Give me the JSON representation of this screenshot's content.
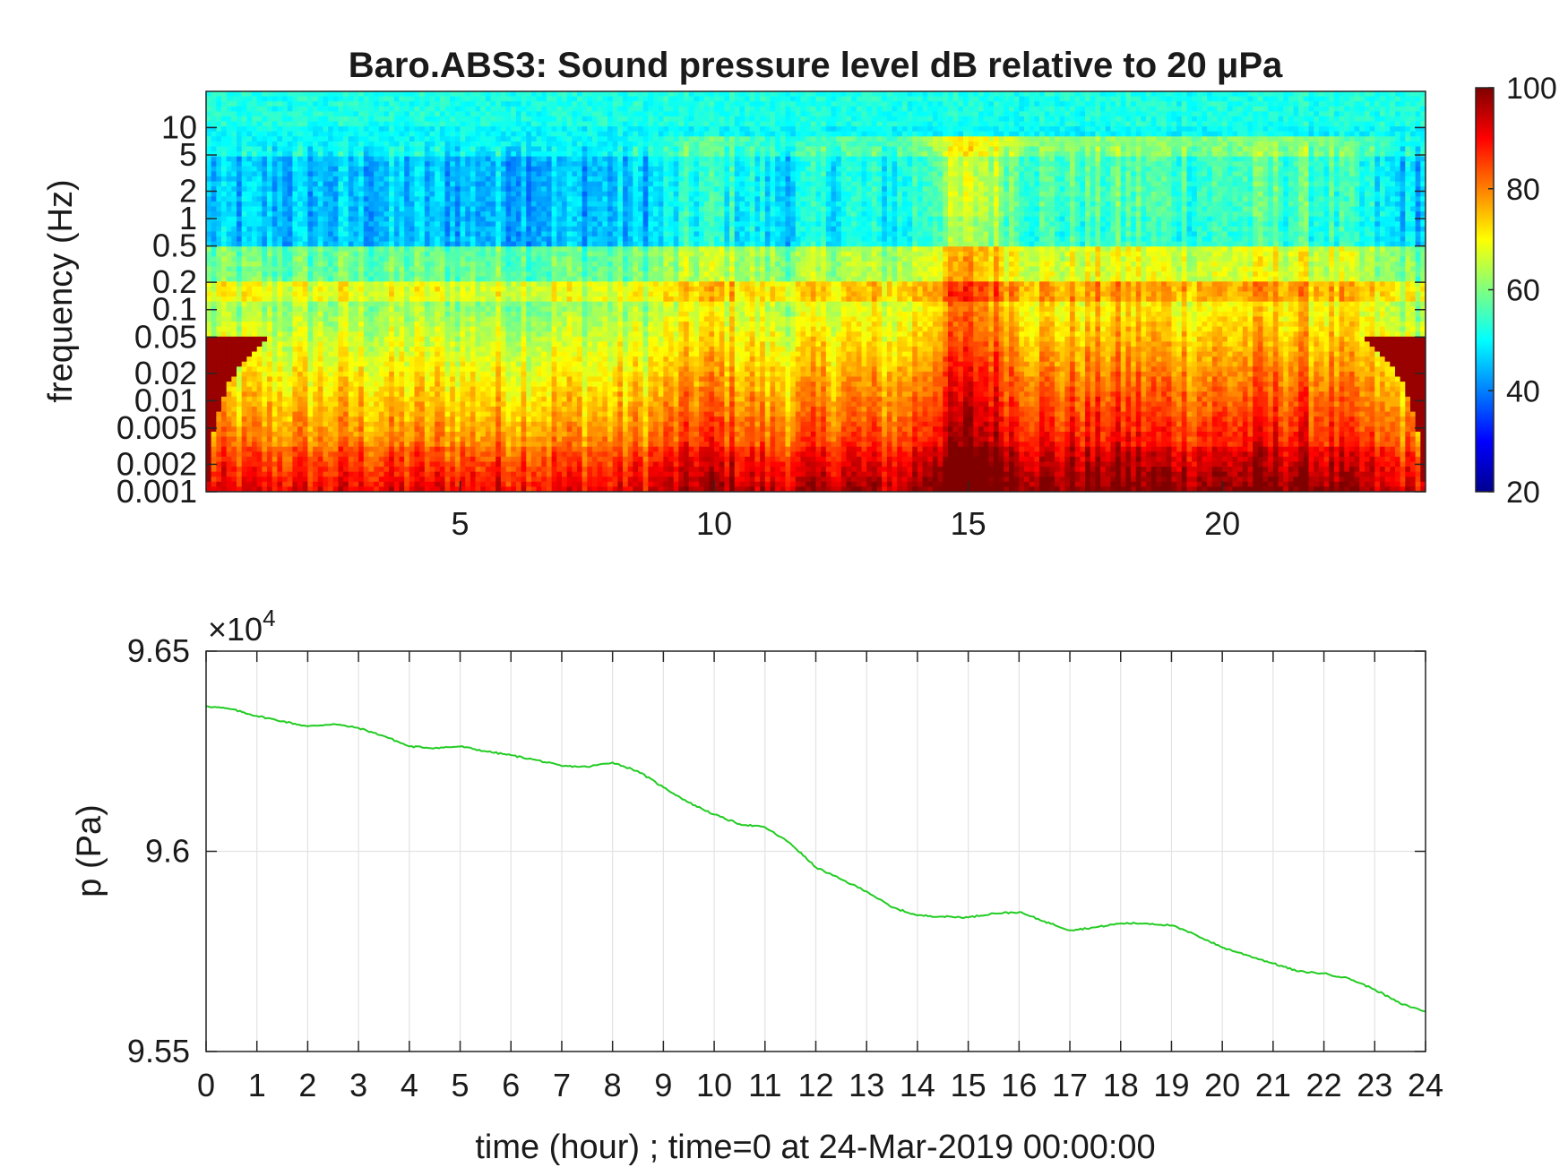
{
  "chart_data": [
    {
      "type": "heatmap",
      "title": "Baro.ABS3: Sound pressure level dB relative to 20 μPa",
      "ylabel": "frequency (Hz)",
      "xlabel": "",
      "xlim": [
        0,
        24
      ],
      "x_ticks": [
        5,
        10,
        15,
        20
      ],
      "x_tick_labels": [
        "5",
        "10",
        "15",
        "20"
      ],
      "y_scale": "log",
      "ylim": [
        0.001,
        25
      ],
      "y_ticks": [
        0.001,
        0.002,
        0.005,
        0.01,
        0.02,
        0.05,
        0.1,
        0.2,
        0.5,
        1,
        2,
        5,
        10
      ],
      "y_tick_labels": [
        "0.001",
        "0.002",
        "0.005",
        "0.01",
        "0.02",
        "0.05",
        "0.1",
        "0.2",
        "0.5",
        "1",
        "2",
        "5",
        "10"
      ],
      "colorbar": {
        "range": [
          20,
          100
        ],
        "ticks": [
          20,
          40,
          60,
          80,
          100
        ],
        "tick_labels": [
          "20",
          "40",
          "60",
          "80",
          "100"
        ],
        "colormap": "jet"
      },
      "grid": false
    },
    {
      "type": "line",
      "title": "",
      "xlabel": "time (hour) ; time=0 at 24-Mar-2019 00:00:00",
      "ylabel": "p (Pa)",
      "xlim": [
        0,
        24
      ],
      "ylim": [
        95500,
        96500
      ],
      "x_ticks": [
        0,
        1,
        2,
        3,
        4,
        5,
        6,
        7,
        8,
        9,
        10,
        11,
        12,
        13,
        14,
        15,
        16,
        17,
        18,
        19,
        20,
        21,
        22,
        23,
        24
      ],
      "x_tick_labels": [
        "0",
        "1",
        "2",
        "3",
        "4",
        "5",
        "6",
        "7",
        "8",
        "9",
        "10",
        "11",
        "12",
        "13",
        "14",
        "15",
        "16",
        "17",
        "18",
        "19",
        "20",
        "21",
        "22",
        "23",
        "24"
      ],
      "y_ticks": [
        95500,
        96000,
        96500
      ],
      "y_tick_labels": [
        "9.55",
        "9.6",
        "9.65"
      ],
      "y_exponent_label": "×10",
      "y_exponent_power": "4",
      "grid": true,
      "series": [
        {
          "color": "#22cc22",
          "x": [
            0,
            0.5,
            1,
            1.5,
            2,
            2.5,
            3,
            3.5,
            4,
            4.5,
            5,
            5.5,
            6,
            6.5,
            7,
            7.5,
            8,
            8.5,
            9,
            9.5,
            10,
            10.5,
            11,
            11.5,
            12,
            12.5,
            13,
            13.5,
            14,
            14.5,
            15,
            15.5,
            16,
            16.5,
            17,
            17.5,
            18,
            18.5,
            19,
            19.5,
            20,
            20.5,
            21,
            21.5,
            22,
            22.5,
            23,
            23.5,
            24
          ],
          "y": [
            96363,
            96355,
            96338,
            96325,
            96312,
            96318,
            96308,
            96288,
            96262,
            96258,
            96262,
            96250,
            96240,
            96228,
            96213,
            96211,
            96222,
            96200,
            96160,
            96122,
            96092,
            96068,
            96060,
            96020,
            95960,
            95930,
            95900,
            95860,
            95840,
            95837,
            95835,
            95845,
            95848,
            95825,
            95803,
            95810,
            95820,
            95820,
            95815,
            95790,
            95760,
            95740,
            95720,
            95700,
            95695,
            95682,
            95655,
            95620,
            95600
          ]
        }
      ]
    }
  ]
}
